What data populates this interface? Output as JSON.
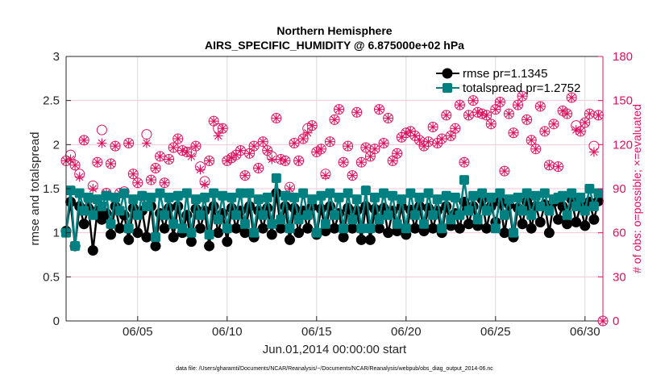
{
  "chart_data": {
    "type": "line",
    "title": [
      "Northern Hemisphere",
      "AIRS_SPECIFIC_HUMIDITY @ 6.875000e+02 hPa"
    ],
    "xlabel": "Jun.01,2014 00:00:00 start",
    "ylabel": "rmse and totalspread",
    "ylabel_right": "# of obs: o=possible; ×=evaluated",
    "footnote": "data file: /Users/gharamti/Documents/NCAR/Reanalysis/~/Documents/NCAR/Reanalysis/webpub/obs_diag_output_2014-06.nc",
    "xlim": [
      1,
      31
    ],
    "ylim": [
      0,
      3
    ],
    "ylim_right": [
      0,
      180
    ],
    "x_ticks": [
      {
        "day": 5,
        "label": "06/05"
      },
      {
        "day": 10,
        "label": "06/10"
      },
      {
        "day": 15,
        "label": "06/15"
      },
      {
        "day": 20,
        "label": "06/20"
      },
      {
        "day": 25,
        "label": "06/25"
      },
      {
        "day": 30,
        "label": "06/30"
      }
    ],
    "y_ticks": [
      "0",
      "0.5",
      "1",
      "1.5",
      "2",
      "2.5",
      "3"
    ],
    "y_ticks_right": [
      "0",
      "30",
      "60",
      "90",
      "120",
      "150",
      "180"
    ],
    "legend_position": "top-right",
    "x_start_day": 1,
    "x_step_days": 0.25,
    "colors": {
      "rmse": "#000000",
      "totalspread": "#008080",
      "obs": "#e0115f",
      "grid": "#d9d9d9",
      "grid_right": "#f5c6d8"
    },
    "series": [
      {
        "name": "rmse",
        "legend": "rmse pr=1.1345",
        "axis": "left",
        "values": [
          1.02,
          1.35,
          0.85,
          1.3,
          1.1,
          1.28,
          0.8,
          1.25,
          1.15,
          1.22,
          0.98,
          1.3,
          1.05,
          1.2,
          0.92,
          1.28,
          1.0,
          1.25,
          0.95,
          1.3,
          0.85,
          1.22,
          1.05,
          1.28,
          0.95,
          1.3,
          1.0,
          1.2,
          0.9,
          1.27,
          1.05,
          1.25,
          0.85,
          1.3,
          1.0,
          1.22,
          0.9,
          1.28,
          1.05,
          1.25,
          1.0,
          1.3,
          0.95,
          1.25,
          1.05,
          1.28,
          0.98,
          1.45,
          1.05,
          1.3,
          0.92,
          1.28,
          1.0,
          1.25,
          1.05,
          1.3,
          0.98,
          1.27,
          1.02,
          1.3,
          1.05,
          1.22,
          0.95,
          1.28,
          1.05,
          1.25,
          0.92,
          1.3,
          0.92,
          1.27,
          1.05,
          1.28,
          1.0,
          1.25,
          1.02,
          1.3,
          0.98,
          1.26,
          1.05,
          1.3,
          1.02,
          1.28,
          1.05,
          1.25,
          1.0,
          1.3,
          1.08,
          1.22,
          1.05,
          1.35,
          1.1,
          1.3,
          1.08,
          1.38,
          1.05,
          1.3,
          1.12,
          1.35,
          1.0,
          1.32,
          0.95,
          1.28,
          1.1,
          1.35,
          1.05,
          1.3,
          1.12,
          1.32,
          1.0,
          1.35,
          1.15,
          1.3,
          1.1,
          1.38,
          1.12,
          1.3,
          1.08,
          1.35,
          1.15,
          1.36
        ]
      },
      {
        "name": "totalspread",
        "legend": "totalspread pr=1.2752",
        "axis": "left",
        "values": [
          1.0,
          1.48,
          0.85,
          1.45,
          1.25,
          1.4,
          1.2,
          1.38,
          1.3,
          1.42,
          1.1,
          1.4,
          1.25,
          1.45,
          1.05,
          1.38,
          1.2,
          1.42,
          1.3,
          1.4,
          0.95,
          1.45,
          1.2,
          1.4,
          1.1,
          1.42,
          1.05,
          1.45,
          1.0,
          1.38,
          1.2,
          1.4,
          0.98,
          1.45,
          1.15,
          1.42,
          1.05,
          1.4,
          1.2,
          1.45,
          1.1,
          1.45,
          1.0,
          1.38,
          1.2,
          1.4,
          1.1,
          1.62,
          1.15,
          1.42,
          1.05,
          1.4,
          1.15,
          1.45,
          1.2,
          1.38,
          1.0,
          1.42,
          1.1,
          1.45,
          1.2,
          1.4,
          1.05,
          1.45,
          1.15,
          1.38,
          1.05,
          1.48,
          1.05,
          1.4,
          1.15,
          1.45,
          1.2,
          1.42,
          1.1,
          1.38,
          1.05,
          1.45,
          1.2,
          1.4,
          1.1,
          1.45,
          1.2,
          1.38,
          1.05,
          1.42,
          1.15,
          1.4,
          1.2,
          1.6,
          1.25,
          1.42,
          1.15,
          1.45,
          1.25,
          1.4,
          1.05,
          1.45,
          1.2,
          1.38,
          1.0,
          1.4,
          1.25,
          1.45,
          1.2,
          1.42,
          1.3,
          1.45,
          1.25,
          1.38,
          1.4,
          1.42,
          1.2,
          1.45,
          1.3,
          1.4,
          1.25,
          1.5,
          1.3,
          1.45
        ]
      },
      {
        "name": "possible obs",
        "marker": "circle",
        "axis": "right",
        "values": [
          109,
          113,
          106,
          100,
          123,
          83,
          92,
          108,
          130,
          87,
          107,
          119,
          87,
          88,
          121,
          100,
          94,
          85,
          127,
          96,
          104,
          112,
          94,
          110,
          118,
          124,
          116,
          115,
          115,
          119,
          105,
          95,
          109,
          136,
          131,
          131,
          109,
          111,
          113,
          116,
          99,
          114,
          119,
          104,
          122,
          116,
          112,
          138,
          110,
          109,
          91,
          121,
          109,
          124,
          131,
          133,
          115,
          117,
          100,
          122,
          137,
          144,
          108,
          119,
          99,
          142,
          108,
          118,
          112,
          117,
          144,
          121,
          138,
          109,
          114,
          125,
          128,
          129,
          126,
          123,
          119,
          122,
          132,
          121,
          124,
          140,
          126,
          131,
          147,
          108,
          140,
          150,
          142,
          141,
          140,
          134,
          144,
          149,
          102,
          141,
          128,
          147,
          153,
          137,
          123,
          117,
          146,
          129,
          106,
          134,
          105,
          143,
          141,
          152,
          133,
          129,
          135,
          141,
          119,
          140,
          0
        ]
      },
      {
        "name": "evaluated obs",
        "marker": "asterisk",
        "axis": "right",
        "values": [
          109,
          110,
          106,
          98,
          123,
          83,
          90,
          108,
          121,
          87,
          107,
          119,
          87,
          86,
          121,
          100,
          94,
          85,
          121,
          96,
          104,
          112,
          94,
          110,
          118,
          124,
          116,
          115,
          112,
          119,
          103,
          93,
          109,
          136,
          126,
          131,
          109,
          111,
          113,
          116,
          99,
          114,
          119,
          104,
          122,
          116,
          110,
          138,
          110,
          109,
          90,
          121,
          109,
          124,
          128,
          133,
          115,
          117,
          99,
          122,
          137,
          144,
          108,
          119,
          99,
          142,
          108,
          118,
          112,
          117,
          144,
          121,
          138,
          109,
          114,
          125,
          128,
          129,
          126,
          123,
          119,
          122,
          132,
          121,
          124,
          140,
          126,
          131,
          147,
          108,
          140,
          150,
          142,
          141,
          140,
          134,
          144,
          149,
          102,
          141,
          128,
          147,
          153,
          137,
          123,
          117,
          146,
          129,
          106,
          134,
          105,
          143,
          141,
          152,
          130,
          129,
          135,
          141,
          115,
          140,
          0
        ]
      }
    ]
  }
}
